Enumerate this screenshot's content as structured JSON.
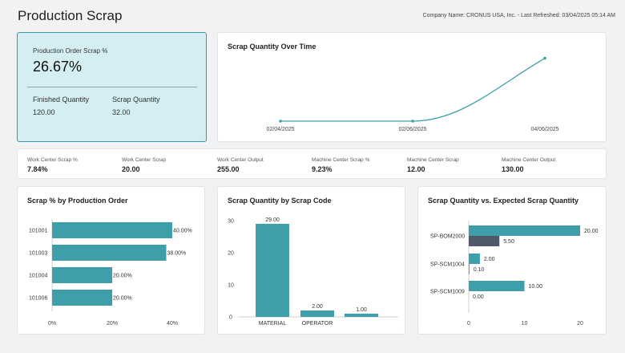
{
  "header": {
    "title": "Production Scrap",
    "company_info": "Company Name: CRONUS USA, Inc. - Last Refreshed: 03/04/2025 05:14 AM"
  },
  "kpi": {
    "label": "Production Order Scrap %",
    "value": "26.67%",
    "finished_label": "Finished Quantity",
    "finished_value": "120.00",
    "scrap_label": "Scrap Quantity",
    "scrap_value": "32.00"
  },
  "strip": [
    {
      "label": "Work Center Scrap %",
      "value": "7.84%"
    },
    {
      "label": "Work Center Scrap",
      "value": "20.00"
    },
    {
      "label": "Work Center Output",
      "value": "255.00"
    },
    {
      "label": "Machine Center Scrap %",
      "value": "9.23%"
    },
    {
      "label": "Machine Center Scrap",
      "value": "12.00"
    },
    {
      "label": "Machine Center Output",
      "value": "130.00"
    }
  ],
  "colors": {
    "teal": "#3e9faa",
    "slate": "#4f5968",
    "axis": "#bdbdbd"
  },
  "chart_data": [
    {
      "type": "line",
      "title": "Scrap Quantity Over Time",
      "categories": [
        "02/04/2025",
        "02/06/2025",
        "04/06/2025"
      ],
      "values": [
        0,
        0,
        24
      ],
      "ylim": [
        0,
        26
      ]
    },
    {
      "type": "bar",
      "orientation": "horizontal",
      "title": "Scrap % by Production Order",
      "categories": [
        "101001",
        "101003",
        "101004",
        "101006"
      ],
      "values": [
        40,
        38,
        20,
        20
      ],
      "labels": [
        "40.00%",
        "38.00%",
        "20.00%",
        "20.00%"
      ],
      "xlim": [
        0,
        40
      ],
      "xticks": [
        "0%",
        "20%",
        "40%"
      ]
    },
    {
      "type": "bar",
      "title": "Scrap Quantity by Scrap Code",
      "categories": [
        "MATERIAL",
        "OPERATOR",
        ""
      ],
      "values": [
        29,
        2,
        1
      ],
      "labels": [
        "29.00",
        "2.00",
        "1.00"
      ],
      "ylim": [
        0,
        30
      ],
      "yticks": [
        "0",
        "10",
        "20",
        "30"
      ]
    },
    {
      "type": "bar",
      "orientation": "horizontal",
      "title": "Scrap Quantity vs. Expected Scrap Quantity",
      "categories": [
        "SP-BOM2000",
        "SP-SCM1004",
        "SP-SCM1009"
      ],
      "series": [
        {
          "name": "Scrap Quantity",
          "values": [
            20,
            2,
            10
          ],
          "labels": [
            "20.00",
            "2.00",
            "10.00"
          ]
        },
        {
          "name": "Expected Scrap Quantity",
          "values": [
            5.5,
            0.1,
            0
          ],
          "labels": [
            "5.50",
            "0.10",
            "0.00"
          ]
        }
      ],
      "xlim": [
        0,
        20
      ],
      "xticks": [
        "0",
        "10",
        "20"
      ]
    }
  ]
}
